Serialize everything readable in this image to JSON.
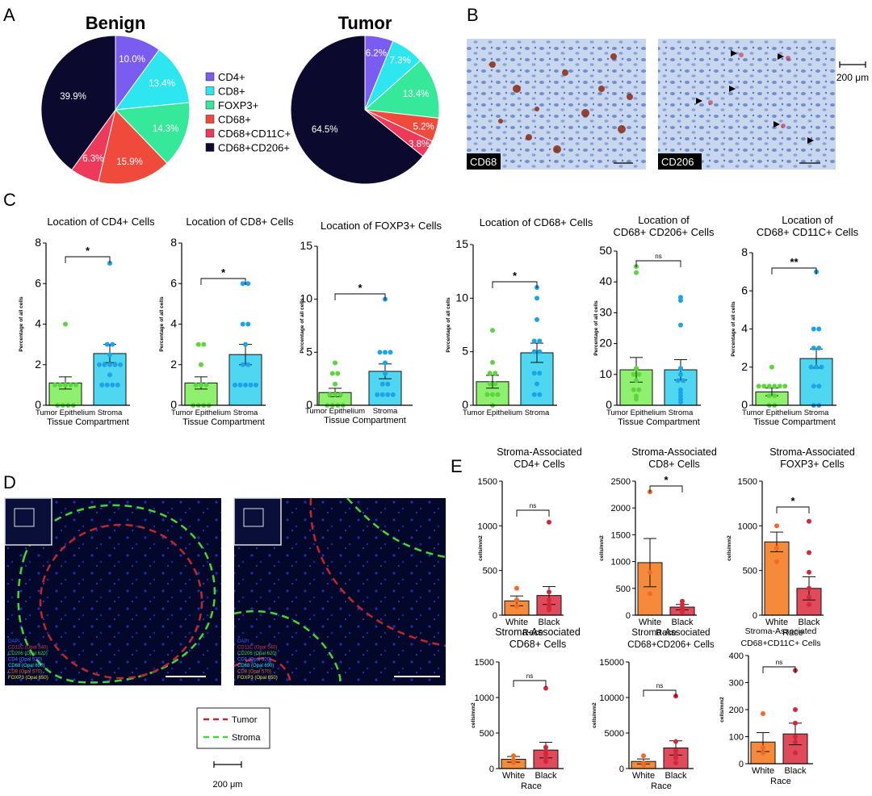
{
  "panel_labels": {
    "A": "A",
    "B": "B",
    "C": "C",
    "D": "D",
    "E": "E"
  },
  "colors": {
    "CD4+": "#7a5cf0",
    "CD8+": "#2ee6f0",
    "FOXP3+": "#35e89a",
    "CD68+": "#f04a3c",
    "CD68+CD11C+": "#ee3a5a",
    "CD68+CD206+": "#0b0a2e",
    "epi_bar": "#8ef06e",
    "epi_dot": "#5cd63c",
    "str_bar": "#4fd7f2",
    "str_dot": "#1ea3e8",
    "white_bar": "#f58a3a",
    "white_dot": "#f06a28",
    "black_bar": "#e04a5a",
    "black_dot": "#d02a3a",
    "tumor_line": "#c0262e",
    "stroma_line": "#45d43c"
  },
  "panel_b": {
    "label1": "CD68",
    "label2": "CD206",
    "scale": "200 μm"
  },
  "panel_d": {
    "legend_tumor": "Tumor",
    "legend_stroma": "Stroma",
    "scale": "200 μm",
    "channels1": [
      "DAPI",
      "CD11C (Opal 540)",
      "CD206 (Opal 620)",
      "CD4 (Opal 520)",
      "CD68 (Opal 690)",
      "CD8 (Opal 570)",
      "FOXP3 (Opal 650)"
    ],
    "channels2": [
      "DAPI",
      "CD11C (Opal 540)",
      "CD206 (Opal 620)",
      "CD4 (Opal 520)",
      "CD68 (Opal 690)",
      "CD8 (Opal 570)",
      "FOXP3 (Opal 650)"
    ]
  },
  "chart_data": [
    {
      "id": "pie_benign",
      "type": "pie",
      "title": "Benign",
      "labels": [
        "CD4+",
        "CD8+",
        "FOXP3+",
        "CD68+",
        "CD68+CD11C+",
        "CD68+CD206+"
      ],
      "values": [
        10.0,
        13.4,
        14.3,
        15.9,
        6.3,
        39.9
      ],
      "value_labels": [
        "10.0%",
        "13.4%",
        "14.3%",
        "15.9%",
        "6.3%",
        "39.9%"
      ]
    },
    {
      "id": "pie_tumor",
      "type": "pie",
      "title": "Tumor",
      "labels": [
        "CD4+",
        "CD8+",
        "FOXP3+",
        "CD68+",
        "CD68+CD11C+",
        "CD68+CD206+"
      ],
      "values": [
        6.2,
        7.3,
        13.4,
        5.2,
        3.8,
        64.5
      ],
      "value_labels": [
        "6.2%",
        "7.3%",
        "13.4%",
        "5.2%",
        "3.8%",
        "64.5%"
      ],
      "legend": [
        "CD4+",
        "CD8+",
        "FOXP3+",
        "CD68+",
        "CD68+CD11C+",
        "CD68+CD206+"
      ]
    },
    {
      "id": "c1",
      "type": "bar",
      "title": [
        "Location of CD4+ Cells"
      ],
      "categories": [
        "Tumor Epithelium",
        "Stroma"
      ],
      "xlabel": "Tissue Compartment",
      "ylabel": "Percentage of all cells",
      "ylim": [
        0,
        8
      ],
      "yticks": [
        "0",
        "2",
        "4",
        "6",
        "8"
      ],
      "values": [
        1.1,
        2.55
      ],
      "errors": [
        0.3,
        0.45
      ],
      "points": [
        [
          4,
          1,
          1,
          1,
          1,
          1,
          0,
          0,
          0,
          0
        ],
        [
          7,
          3,
          3,
          2.5,
          2,
          2,
          2,
          2,
          2,
          1.5,
          1,
          1,
          1,
          1
        ]
      ],
      "sig": "*"
    },
    {
      "id": "c2",
      "type": "bar",
      "title": [
        "Location of CD8+ Cells"
      ],
      "categories": [
        "Tumor Epithelium",
        "Stroma"
      ],
      "xlabel": "Tissue Compartment",
      "ylabel": "Percentage of all cells",
      "ylim": [
        0,
        8
      ],
      "yticks": [
        "0",
        "2",
        "4",
        "6",
        "8"
      ],
      "values": [
        1.1,
        2.5
      ],
      "errors": [
        0.3,
        0.5
      ],
      "points": [
        [
          3,
          3,
          2,
          1,
          1,
          1,
          0,
          0,
          0,
          0
        ],
        [
          6,
          6,
          4,
          4,
          3,
          2,
          2,
          1,
          1,
          1,
          1,
          1
        ]
      ],
      "sig": "*"
    },
    {
      "id": "c3",
      "type": "bar",
      "title": [
        "Location of FOXP3+ Cells"
      ],
      "categories": [
        "Tumor Epithelium",
        "Stroma"
      ],
      "xlabel": "Tissue Compartment",
      "ylabel": "Percentage of all cells",
      "ylim": [
        0,
        15
      ],
      "yticks": [
        "0",
        "5",
        "10",
        "15"
      ],
      "values": [
        1.2,
        3.2
      ],
      "errors": [
        0.4,
        0.7
      ],
      "points": [
        [
          4,
          3,
          3,
          2,
          1,
          1,
          1,
          0,
          0,
          0,
          0
        ],
        [
          10,
          5,
          5,
          5,
          4,
          3,
          2,
          2,
          1,
          1,
          1,
          1
        ]
      ],
      "sig": "*"
    },
    {
      "id": "c4",
      "type": "bar",
      "title": [
        "Location of CD68+ Cells"
      ],
      "categories": [
        "Tumor Epithelium",
        "Stroma"
      ],
      "xlabel": "",
      "ylabel": "Percentage of all cells",
      "ylim": [
        0,
        15
      ],
      "yticks": [
        "0",
        "5",
        "10",
        "15"
      ],
      "values": [
        2.2,
        4.9
      ],
      "errors": [
        0.6,
        0.9
      ],
      "points": [
        [
          7,
          4,
          3,
          3,
          2,
          2,
          1,
          1,
          1,
          0
        ],
        [
          11,
          10,
          8,
          6,
          6,
          5,
          5,
          3,
          3,
          2,
          1,
          1
        ]
      ],
      "sig": "*"
    },
    {
      "id": "c5",
      "type": "bar",
      "title": [
        "Location of",
        "CD68+ CD206+ Cells"
      ],
      "categories": [
        "Tumor Epithelium",
        "Stroma"
      ],
      "xlabel": "Tissue Compartment",
      "ylabel": "Percentage of all cells",
      "ylim": [
        0,
        50
      ],
      "yticks": [
        "0",
        "10",
        "20",
        "30",
        "40",
        "50"
      ],
      "values": [
        11.5,
        11.5
      ],
      "errors": [
        4.0,
        3.3
      ],
      "points": [
        [
          45,
          43,
          12,
          10,
          10,
          8,
          5,
          5,
          3,
          2
        ],
        [
          35,
          34,
          26,
          12,
          10,
          8,
          8,
          5,
          4,
          3,
          2,
          1
        ]
      ],
      "sig": "ns"
    },
    {
      "id": "c6",
      "type": "bar",
      "title": [
        "Location of",
        "CD68+ CD11C+ Cells"
      ],
      "categories": [
        "Tumor Epithelium",
        "Stroma"
      ],
      "xlabel": "Tissue Compartment",
      "ylabel": "Percentage of all cells",
      "ylim": [
        0,
        8
      ],
      "yticks": [
        "0",
        "2",
        "4",
        "6",
        "8"
      ],
      "values": [
        0.7,
        2.45
      ],
      "errors": [
        0.2,
        0.5
      ],
      "points": [
        [
          2,
          1,
          1,
          1,
          1,
          1,
          1,
          0.5,
          0.5,
          0,
          0
        ],
        [
          7,
          4,
          4,
          3,
          3,
          2,
          2,
          2,
          1,
          1,
          0,
          0
        ]
      ],
      "sig": "**"
    },
    {
      "id": "e1",
      "type": "bar",
      "title": [
        "Stroma-Associated",
        "CD4+ Cells"
      ],
      "categories": [
        "White",
        "Black"
      ],
      "xlabel": "Race",
      "ylabel": "cells/mm2",
      "ylim": [
        0,
        1500
      ],
      "yticks": [
        "0",
        "500",
        "1000",
        "1500"
      ],
      "values": [
        160,
        220
      ],
      "errors": [
        55,
        100
      ],
      "points": [
        [
          300,
          170,
          100
        ],
        [
          1040,
          260,
          170,
          120,
          90,
          60
        ]
      ],
      "sig": "ns"
    },
    {
      "id": "e2",
      "type": "bar",
      "title": [
        "Stroma-Associated",
        "CD8+ Cells"
      ],
      "categories": [
        "White",
        "Black"
      ],
      "xlabel": "Race",
      "ylabel": "cells/mm2",
      "ylim": [
        0,
        2500
      ],
      "yticks": [
        "0",
        "500",
        "1000",
        "1500",
        "2000",
        "2500"
      ],
      "values": [
        980,
        150
      ],
      "errors": [
        450,
        50
      ],
      "points": [
        [
          2300,
          800,
          400
        ],
        [
          260,
          200,
          150,
          120,
          100,
          60
        ]
      ],
      "sig": "*"
    },
    {
      "id": "e3",
      "type": "bar",
      "title": [
        "Stroma-Associated",
        "FOXP3+ Cells"
      ],
      "categories": [
        "White",
        "Black"
      ],
      "xlabel": "Race",
      "ylabel": "cells/mm2",
      "ylim": [
        0,
        1500
      ],
      "yticks": [
        "0",
        "500",
        "1000",
        "1500"
      ],
      "values": [
        820,
        300
      ],
      "errors": [
        110,
        130
      ],
      "points": [
        [
          1000,
          750,
          600
        ],
        [
          1050,
          700,
          480,
          300,
          200,
          120
        ]
      ],
      "sig": "*"
    },
    {
      "id": "e4",
      "type": "bar",
      "title": [
        "Stroma-Associated",
        "CD68+ Cells"
      ],
      "categories": [
        "White",
        "Black"
      ],
      "xlabel": "Race",
      "ylabel": "cells/mm2",
      "ylim": [
        0,
        1500
      ],
      "yticks": [
        "0",
        "500",
        "1000",
        "1500"
      ],
      "values": [
        130,
        260
      ],
      "errors": [
        40,
        110
      ],
      "points": [
        [
          180,
          120,
          80
        ],
        [
          1130,
          300,
          250,
          200,
          150,
          100
        ]
      ],
      "sig": "ns"
    },
    {
      "id": "e5",
      "type": "bar",
      "title": [
        "Stroma-Associated",
        "CD68+CD206+ Cells"
      ],
      "categories": [
        "White",
        "Black"
      ],
      "xlabel": "Race",
      "ylabel": "cells/mm2",
      "ylim": [
        0,
        15000
      ],
      "yticks": [
        "0",
        "5000",
        "10000",
        "15000"
      ],
      "values": [
        1000,
        2900
      ],
      "errors": [
        350,
        1000
      ],
      "points": [
        [
          1800,
          800,
          500
        ],
        [
          10200,
          3800,
          2500,
          2000,
          1500,
          800
        ]
      ],
      "sig": "ns"
    },
    {
      "id": "e6",
      "type": "bar",
      "title": [
        "Stroma-Associated",
        "CD68+CD11C+ Cells"
      ],
      "categories": [
        "White",
        "Black"
      ],
      "xlabel": "Race",
      "ylabel": "cells/mm2",
      "ylim": [
        0,
        400
      ],
      "yticks": [
        "0",
        "100",
        "200",
        "300",
        "400"
      ],
      "values": [
        80,
        110
      ],
      "errors": [
        35,
        40
      ],
      "points": [
        [
          185,
          60,
          40
        ],
        [
          345,
          200,
          150,
          100,
          80,
          40
        ]
      ],
      "sig": "ns"
    }
  ]
}
